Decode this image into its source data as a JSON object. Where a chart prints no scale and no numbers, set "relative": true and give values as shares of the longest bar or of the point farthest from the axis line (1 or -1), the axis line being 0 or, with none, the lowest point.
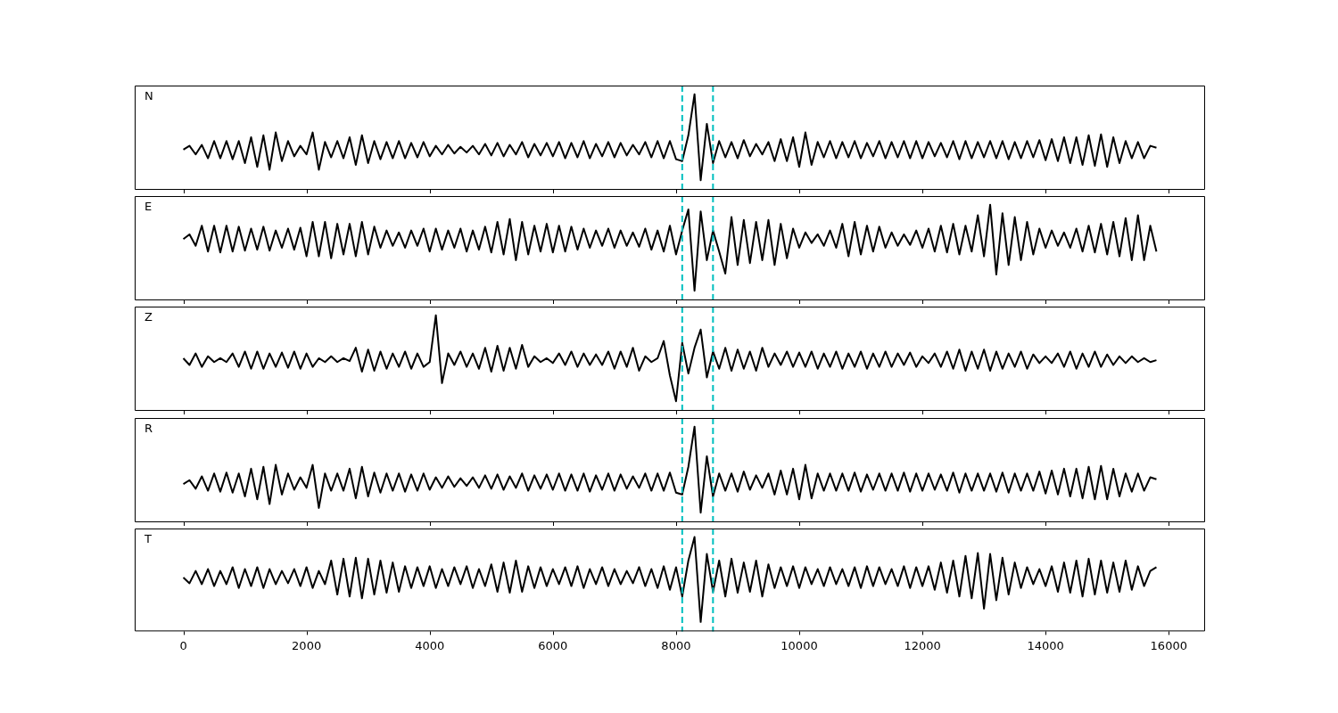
{
  "chart_data": [
    {
      "type": "line",
      "annotations": [
        "N"
      ],
      "relative": true,
      "color": "#000000",
      "marker": "none",
      "legend": false,
      "grid": false,
      "tick_labels": false,
      "xlim": [
        -790,
        16590
      ],
      "xticks": [
        0,
        2000,
        4000,
        6000,
        8000,
        10000,
        12000,
        14000,
        16000
      ],
      "ref_lines": [
        {
          "axis": "x",
          "value": 8100,
          "color": "#00bfbf",
          "line_style": "dashed"
        },
        {
          "axis": "x",
          "value": 8600,
          "color": "#00bfbf",
          "line_style": "dashed"
        }
      ],
      "x": [
        0,
        100,
        200,
        300,
        400,
        500,
        600,
        700,
        800,
        900,
        1000,
        1100,
        1200,
        1300,
        1400,
        1500,
        1600,
        1700,
        1800,
        1900,
        2000,
        2100,
        2200,
        2300,
        2400,
        2500,
        2600,
        2700,
        2800,
        2900,
        3000,
        3100,
        3200,
        3300,
        3400,
        3500,
        3600,
        3700,
        3800,
        3900,
        4000,
        4100,
        4200,
        4300,
        4400,
        4500,
        4600,
        4700,
        4800,
        4900,
        5000,
        5100,
        5200,
        5300,
        5400,
        5500,
        5600,
        5700,
        5800,
        5900,
        6000,
        6100,
        6200,
        6300,
        6400,
        6500,
        6600,
        6700,
        6800,
        6900,
        7000,
        7100,
        7200,
        7300,
        7400,
        7500,
        7600,
        7700,
        7800,
        7900,
        8000,
        8100,
        8200,
        8300,
        8400,
        8500,
        8600,
        8700,
        8800,
        8900,
        9000,
        9100,
        9200,
        9300,
        9400,
        9500,
        9600,
        9700,
        9800,
        9900,
        10000,
        10100,
        10200,
        10300,
        10400,
        10500,
        10600,
        10700,
        10800,
        10900,
        11000,
        11100,
        11200,
        11300,
        11400,
        11500,
        11600,
        11700,
        11800,
        11900,
        12000,
        12100,
        12200,
        12300,
        12400,
        12500,
        12600,
        12700,
        12800,
        12900,
        13000,
        13100,
        13200,
        13300,
        13400,
        13500,
        13600,
        13700,
        13800,
        13900,
        14000,
        14100,
        14200,
        14300,
        14400,
        14500,
        14600,
        14700,
        14800,
        14900,
        15000,
        15100,
        15200,
        15300,
        15400,
        15500,
        15600,
        15700,
        15800
      ],
      "values": [
        0.42,
        0.46,
        0.37,
        0.47,
        0.33,
        0.51,
        0.33,
        0.51,
        0.32,
        0.51,
        0.28,
        0.55,
        0.24,
        0.57,
        0.21,
        0.6,
        0.3,
        0.51,
        0.35,
        0.46,
        0.37,
        0.6,
        0.21,
        0.5,
        0.34,
        0.51,
        0.33,
        0.55,
        0.26,
        0.57,
        0.28,
        0.51,
        0.32,
        0.5,
        0.33,
        0.51,
        0.33,
        0.49,
        0.34,
        0.5,
        0.35,
        0.46,
        0.37,
        0.47,
        0.38,
        0.45,
        0.39,
        0.46,
        0.37,
        0.48,
        0.36,
        0.49,
        0.35,
        0.47,
        0.37,
        0.5,
        0.34,
        0.48,
        0.36,
        0.49,
        0.35,
        0.5,
        0.33,
        0.49,
        0.34,
        0.51,
        0.33,
        0.48,
        0.35,
        0.5,
        0.34,
        0.49,
        0.36,
        0.47,
        0.37,
        0.5,
        0.34,
        0.51,
        0.33,
        0.51,
        0.32,
        0.3,
        0.57,
        1.0,
        0.1,
        0.69,
        0.28,
        0.51,
        0.34,
        0.5,
        0.33,
        0.52,
        0.35,
        0.48,
        0.37,
        0.5,
        0.3,
        0.53,
        0.3,
        0.55,
        0.24,
        0.6,
        0.26,
        0.5,
        0.34,
        0.51,
        0.33,
        0.5,
        0.34,
        0.51,
        0.33,
        0.49,
        0.35,
        0.51,
        0.33,
        0.5,
        0.34,
        0.51,
        0.33,
        0.51,
        0.33,
        0.5,
        0.35,
        0.49,
        0.34,
        0.51,
        0.32,
        0.51,
        0.33,
        0.5,
        0.34,
        0.51,
        0.33,
        0.51,
        0.32,
        0.5,
        0.33,
        0.51,
        0.34,
        0.52,
        0.31,
        0.53,
        0.3,
        0.55,
        0.28,
        0.55,
        0.26,
        0.57,
        0.25,
        0.58,
        0.24,
        0.55,
        0.28,
        0.51,
        0.33,
        0.5,
        0.33,
        0.46,
        0.44
      ]
    },
    {
      "type": "line",
      "annotations": [
        "E"
      ],
      "relative": true,
      "color": "#000000",
      "marker": "none",
      "legend": false,
      "grid": false,
      "tick_labels": false,
      "xlim": [
        -790,
        16590
      ],
      "xticks": [
        0,
        2000,
        4000,
        6000,
        8000,
        10000,
        12000,
        14000,
        16000
      ],
      "ref_lines": [
        {
          "axis": "x",
          "value": 8100,
          "color": "#00bfbf",
          "line_style": "dashed"
        },
        {
          "axis": "x",
          "value": 8600,
          "color": "#00bfbf",
          "line_style": "dashed"
        }
      ],
      "x": [
        0,
        100,
        200,
        300,
        400,
        500,
        600,
        700,
        800,
        900,
        1000,
        1100,
        1200,
        1300,
        1400,
        1500,
        1600,
        1700,
        1800,
        1900,
        2000,
        2100,
        2200,
        2300,
        2400,
        2500,
        2600,
        2700,
        2800,
        2900,
        3000,
        3100,
        3200,
        3300,
        3400,
        3500,
        3600,
        3700,
        3800,
        3900,
        4000,
        4100,
        4200,
        4300,
        4400,
        4500,
        4600,
        4700,
        4800,
        4900,
        5000,
        5100,
        5200,
        5300,
        5400,
        5500,
        5600,
        5700,
        5800,
        5900,
        6000,
        6100,
        6200,
        6300,
        6400,
        6500,
        6600,
        6700,
        6800,
        6900,
        7000,
        7100,
        7200,
        7300,
        7400,
        7500,
        7600,
        7700,
        7800,
        7900,
        8000,
        8100,
        8200,
        8300,
        8400,
        8500,
        8600,
        8700,
        8800,
        8900,
        9000,
        9100,
        9200,
        9300,
        9400,
        9500,
        9600,
        9700,
        9800,
        9900,
        10000,
        10100,
        10200,
        10300,
        10400,
        10500,
        10600,
        10700,
        10800,
        10900,
        11000,
        11100,
        11200,
        11300,
        11400,
        11500,
        11600,
        11700,
        11800,
        11900,
        12000,
        12100,
        12200,
        12300,
        12400,
        12500,
        12600,
        12700,
        12800,
        12900,
        13000,
        13100,
        13200,
        13300,
        13400,
        13500,
        13600,
        13700,
        13800,
        13900,
        14000,
        14100,
        14200,
        14300,
        14400,
        14500,
        14600,
        14700,
        14800,
        14900,
        15000,
        15100,
        15200,
        15300,
        15400,
        15500,
        15600,
        15700,
        15800
      ],
      "values": [
        0.64,
        0.69,
        0.57,
        0.78,
        0.51,
        0.78,
        0.5,
        0.78,
        0.51,
        0.77,
        0.52,
        0.75,
        0.53,
        0.77,
        0.52,
        0.73,
        0.55,
        0.75,
        0.53,
        0.76,
        0.46,
        0.82,
        0.46,
        0.82,
        0.44,
        0.8,
        0.48,
        0.8,
        0.46,
        0.82,
        0.48,
        0.77,
        0.55,
        0.73,
        0.57,
        0.71,
        0.55,
        0.73,
        0.57,
        0.75,
        0.51,
        0.75,
        0.53,
        0.73,
        0.55,
        0.75,
        0.51,
        0.73,
        0.53,
        0.77,
        0.5,
        0.82,
        0.48,
        0.85,
        0.42,
        0.82,
        0.48,
        0.78,
        0.51,
        0.8,
        0.5,
        0.78,
        0.51,
        0.77,
        0.53,
        0.75,
        0.55,
        0.73,
        0.57,
        0.75,
        0.55,
        0.73,
        0.57,
        0.71,
        0.56,
        0.75,
        0.53,
        0.73,
        0.51,
        0.78,
        0.48,
        0.73,
        0.95,
        0.1,
        0.93,
        0.42,
        0.73,
        0.51,
        0.28,
        0.87,
        0.37,
        0.84,
        0.39,
        0.82,
        0.42,
        0.84,
        0.37,
        0.8,
        0.44,
        0.75,
        0.55,
        0.71,
        0.6,
        0.69,
        0.57,
        0.73,
        0.55,
        0.8,
        0.46,
        0.82,
        0.48,
        0.78,
        0.51,
        0.77,
        0.55,
        0.71,
        0.57,
        0.69,
        0.58,
        0.73,
        0.55,
        0.75,
        0.51,
        0.78,
        0.5,
        0.8,
        0.48,
        0.78,
        0.51,
        0.89,
        0.46,
        1.0,
        0.27,
        0.91,
        0.37,
        0.87,
        0.42,
        0.82,
        0.48,
        0.75,
        0.55,
        0.73,
        0.57,
        0.71,
        0.55,
        0.75,
        0.51,
        0.78,
        0.5,
        0.8,
        0.48,
        0.82,
        0.46,
        0.86,
        0.42,
        0.89,
        0.42,
        0.78,
        0.51
      ]
    },
    {
      "type": "line",
      "annotations": [
        "Z"
      ],
      "relative": true,
      "color": "#000000",
      "marker": "none",
      "legend": false,
      "grid": false,
      "tick_labels": false,
      "xlim": [
        -790,
        16590
      ],
      "xticks": [
        0,
        2000,
        4000,
        6000,
        8000,
        10000,
        12000,
        14000,
        16000
      ],
      "ref_lines": [
        {
          "axis": "x",
          "value": 8100,
          "color": "#00bfbf",
          "line_style": "dashed"
        },
        {
          "axis": "x",
          "value": 8600,
          "color": "#00bfbf",
          "line_style": "dashed"
        }
      ],
      "x": [
        0,
        100,
        200,
        300,
        400,
        500,
        600,
        700,
        800,
        900,
        1000,
        1100,
        1200,
        1300,
        1400,
        1500,
        1600,
        1700,
        1800,
        1900,
        2000,
        2100,
        2200,
        2300,
        2400,
        2500,
        2600,
        2700,
        2800,
        2900,
        3000,
        3100,
        3200,
        3300,
        3400,
        3500,
        3600,
        3700,
        3800,
        3900,
        4000,
        4100,
        4200,
        4300,
        4400,
        4500,
        4600,
        4700,
        4800,
        4900,
        5000,
        5100,
        5200,
        5300,
        5400,
        5500,
        5600,
        5700,
        5800,
        5900,
        6000,
        6100,
        6200,
        6300,
        6400,
        6500,
        6600,
        6700,
        6800,
        6900,
        7000,
        7100,
        7200,
        7300,
        7400,
        7500,
        7600,
        7700,
        7800,
        7900,
        8000,
        8100,
        8200,
        8300,
        8400,
        8500,
        8600,
        8700,
        8800,
        8900,
        9000,
        9100,
        9200,
        9300,
        9400,
        9500,
        9600,
        9700,
        9800,
        9900,
        10000,
        10100,
        10200,
        10300,
        10400,
        10500,
        10600,
        10700,
        10800,
        10900,
        11000,
        11100,
        11200,
        11300,
        11400,
        11500,
        11600,
        11700,
        11800,
        11900,
        12000,
        12100,
        12200,
        12300,
        12400,
        12500,
        12600,
        12700,
        12800,
        12900,
        13000,
        13100,
        13200,
        13300,
        13400,
        13500,
        13600,
        13700,
        13800,
        13900,
        14000,
        14100,
        14200,
        14300,
        14400,
        14500,
        14600,
        14700,
        14800,
        14900,
        15000,
        15100,
        15200,
        15300,
        15400,
        15500,
        15600,
        15700,
        15800
      ],
      "values": [
        0.55,
        0.48,
        0.6,
        0.46,
        0.57,
        0.51,
        0.55,
        0.51,
        0.6,
        0.46,
        0.62,
        0.44,
        0.62,
        0.44,
        0.6,
        0.46,
        0.61,
        0.45,
        0.62,
        0.44,
        0.6,
        0.46,
        0.55,
        0.51,
        0.57,
        0.51,
        0.55,
        0.52,
        0.66,
        0.41,
        0.64,
        0.42,
        0.62,
        0.44,
        0.6,
        0.46,
        0.62,
        0.44,
        0.6,
        0.46,
        0.51,
        1.0,
        0.29,
        0.6,
        0.48,
        0.62,
        0.46,
        0.6,
        0.44,
        0.66,
        0.41,
        0.68,
        0.42,
        0.66,
        0.44,
        0.69,
        0.46,
        0.57,
        0.51,
        0.55,
        0.5,
        0.6,
        0.48,
        0.62,
        0.46,
        0.6,
        0.48,
        0.59,
        0.48,
        0.62,
        0.44,
        0.62,
        0.46,
        0.66,
        0.42,
        0.57,
        0.51,
        0.55,
        0.73,
        0.37,
        0.1,
        0.71,
        0.39,
        0.66,
        0.85,
        0.35,
        0.62,
        0.44,
        0.66,
        0.42,
        0.64,
        0.44,
        0.62,
        0.42,
        0.66,
        0.46,
        0.6,
        0.48,
        0.62,
        0.46,
        0.61,
        0.46,
        0.62,
        0.44,
        0.6,
        0.46,
        0.62,
        0.44,
        0.6,
        0.46,
        0.62,
        0.44,
        0.6,
        0.46,
        0.62,
        0.46,
        0.6,
        0.48,
        0.61,
        0.46,
        0.57,
        0.5,
        0.6,
        0.46,
        0.62,
        0.44,
        0.64,
        0.42,
        0.62,
        0.44,
        0.64,
        0.42,
        0.62,
        0.44,
        0.6,
        0.46,
        0.62,
        0.44,
        0.59,
        0.5,
        0.57,
        0.5,
        0.6,
        0.46,
        0.62,
        0.44,
        0.6,
        0.46,
        0.62,
        0.46,
        0.59,
        0.48,
        0.57,
        0.5,
        0.57,
        0.51,
        0.55,
        0.51,
        0.53
      ]
    },
    {
      "type": "line",
      "annotations": [
        "R"
      ],
      "relative": true,
      "color": "#000000",
      "marker": "none",
      "legend": false,
      "grid": false,
      "tick_labels": false,
      "xlim": [
        -790,
        16590
      ],
      "xticks": [
        0,
        2000,
        4000,
        6000,
        8000,
        10000,
        12000,
        14000,
        16000
      ],
      "ref_lines": [
        {
          "axis": "x",
          "value": 8100,
          "color": "#00bfbf",
          "line_style": "dashed"
        },
        {
          "axis": "x",
          "value": 8600,
          "color": "#00bfbf",
          "line_style": "dashed"
        }
      ],
      "x": [
        0,
        100,
        200,
        300,
        400,
        500,
        600,
        700,
        800,
        900,
        1000,
        1100,
        1200,
        1300,
        1400,
        1500,
        1600,
        1700,
        1800,
        1900,
        2000,
        2100,
        2200,
        2300,
        2400,
        2500,
        2600,
        2700,
        2800,
        2900,
        3000,
        3100,
        3200,
        3300,
        3400,
        3500,
        3600,
        3700,
        3800,
        3900,
        4000,
        4100,
        4200,
        4300,
        4400,
        4500,
        4600,
        4700,
        4800,
        4900,
        5000,
        5100,
        5200,
        5300,
        5400,
        5500,
        5600,
        5700,
        5800,
        5900,
        6000,
        6100,
        6200,
        6300,
        6400,
        6500,
        6600,
        6700,
        6800,
        6900,
        7000,
        7100,
        7200,
        7300,
        7400,
        7500,
        7600,
        7700,
        7800,
        7900,
        8000,
        8100,
        8200,
        8300,
        8400,
        8500,
        8600,
        8700,
        8800,
        8900,
        9000,
        9100,
        9200,
        9300,
        9400,
        9500,
        9600,
        9700,
        9800,
        9900,
        10000,
        10100,
        10200,
        10300,
        10400,
        10500,
        10600,
        10700,
        10800,
        10900,
        11000,
        11100,
        11200,
        11300,
        11400,
        11500,
        11600,
        11700,
        11800,
        11900,
        12000,
        12100,
        12200,
        12300,
        12400,
        12500,
        12600,
        12700,
        12800,
        12900,
        13000,
        13100,
        13200,
        13300,
        13400,
        13500,
        13600,
        13700,
        13800,
        13900,
        14000,
        14100,
        14200,
        14300,
        14400,
        14500,
        14600,
        14700,
        14800,
        14900,
        15000,
        15100,
        15200,
        15300,
        15400,
        15500,
        15600,
        15700,
        15800
      ],
      "values": [
        0.4,
        0.44,
        0.35,
        0.48,
        0.33,
        0.51,
        0.32,
        0.52,
        0.31,
        0.51,
        0.27,
        0.56,
        0.24,
        0.58,
        0.19,
        0.6,
        0.29,
        0.51,
        0.34,
        0.47,
        0.36,
        0.6,
        0.15,
        0.51,
        0.33,
        0.51,
        0.33,
        0.56,
        0.25,
        0.58,
        0.27,
        0.52,
        0.31,
        0.51,
        0.33,
        0.51,
        0.32,
        0.5,
        0.33,
        0.51,
        0.34,
        0.47,
        0.36,
        0.48,
        0.37,
        0.46,
        0.38,
        0.47,
        0.36,
        0.49,
        0.35,
        0.5,
        0.34,
        0.48,
        0.36,
        0.51,
        0.33,
        0.49,
        0.35,
        0.5,
        0.34,
        0.51,
        0.33,
        0.5,
        0.33,
        0.51,
        0.32,
        0.49,
        0.34,
        0.51,
        0.33,
        0.5,
        0.35,
        0.48,
        0.36,
        0.51,
        0.33,
        0.51,
        0.33,
        0.52,
        0.31,
        0.29,
        0.58,
        1.0,
        0.1,
        0.69,
        0.27,
        0.51,
        0.33,
        0.51,
        0.32,
        0.53,
        0.34,
        0.49,
        0.36,
        0.51,
        0.29,
        0.54,
        0.29,
        0.56,
        0.24,
        0.6,
        0.25,
        0.51,
        0.33,
        0.51,
        0.33,
        0.51,
        0.33,
        0.52,
        0.32,
        0.5,
        0.34,
        0.51,
        0.33,
        0.51,
        0.33,
        0.52,
        0.32,
        0.51,
        0.33,
        0.51,
        0.34,
        0.5,
        0.33,
        0.52,
        0.31,
        0.51,
        0.33,
        0.51,
        0.33,
        0.51,
        0.32,
        0.52,
        0.31,
        0.51,
        0.33,
        0.51,
        0.33,
        0.53,
        0.3,
        0.54,
        0.29,
        0.56,
        0.27,
        0.56,
        0.25,
        0.58,
        0.24,
        0.59,
        0.24,
        0.56,
        0.27,
        0.51,
        0.32,
        0.51,
        0.33,
        0.47,
        0.45
      ]
    },
    {
      "type": "line",
      "annotations": [
        "T"
      ],
      "relative": true,
      "color": "#000000",
      "marker": "none",
      "legend": false,
      "grid": false,
      "tick_labels": "x",
      "xlim": [
        -790,
        16590
      ],
      "xticks": [
        0,
        2000,
        4000,
        6000,
        8000,
        10000,
        12000,
        14000,
        16000
      ],
      "ref_lines": [
        {
          "axis": "x",
          "value": 8100,
          "color": "#00bfbf",
          "line_style": "dashed"
        },
        {
          "axis": "x",
          "value": 8600,
          "color": "#00bfbf",
          "line_style": "dashed"
        }
      ],
      "x": [
        0,
        100,
        200,
        300,
        400,
        500,
        600,
        700,
        800,
        900,
        1000,
        1100,
        1200,
        1300,
        1400,
        1500,
        1600,
        1700,
        1800,
        1900,
        2000,
        2100,
        2200,
        2300,
        2400,
        2500,
        2600,
        2700,
        2800,
        2900,
        3000,
        3100,
        3200,
        3300,
        3400,
        3500,
        3600,
        3700,
        3800,
        3900,
        4000,
        4100,
        4200,
        4300,
        4400,
        4500,
        4600,
        4700,
        4800,
        4900,
        5000,
        5100,
        5200,
        5300,
        5400,
        5500,
        5600,
        5700,
        5800,
        5900,
        6000,
        6100,
        6200,
        6300,
        6400,
        6500,
        6600,
        6700,
        6800,
        6900,
        7000,
        7100,
        7200,
        7300,
        7400,
        7500,
        7600,
        7700,
        7800,
        7900,
        8000,
        8100,
        8200,
        8300,
        8400,
        8500,
        8600,
        8700,
        8800,
        8900,
        9000,
        9100,
        9200,
        9300,
        9400,
        9500,
        9600,
        9700,
        9800,
        9900,
        10000,
        10100,
        10200,
        10300,
        10400,
        10500,
        10600,
        10700,
        10800,
        10900,
        11000,
        11100,
        11200,
        11300,
        11400,
        11500,
        11600,
        11700,
        11800,
        11900,
        12000,
        12100,
        12200,
        12300,
        12400,
        12500,
        12600,
        12700,
        12800,
        12900,
        13000,
        13100,
        13200,
        13300,
        13400,
        13500,
        13600,
        13700,
        13800,
        13900,
        14000,
        14100,
        14200,
        14300,
        14400,
        14500,
        14600,
        14700,
        14800,
        14900,
        15000,
        15100,
        15200,
        15300,
        15400,
        15500,
        15600,
        15700,
        15800
      ],
      "values": [
        0.57,
        0.51,
        0.64,
        0.5,
        0.66,
        0.48,
        0.64,
        0.5,
        0.68,
        0.46,
        0.66,
        0.48,
        0.68,
        0.46,
        0.66,
        0.5,
        0.64,
        0.51,
        0.66,
        0.48,
        0.68,
        0.46,
        0.64,
        0.5,
        0.75,
        0.39,
        0.77,
        0.37,
        0.78,
        0.35,
        0.77,
        0.39,
        0.75,
        0.41,
        0.73,
        0.42,
        0.69,
        0.46,
        0.68,
        0.48,
        0.69,
        0.46,
        0.66,
        0.48,
        0.68,
        0.5,
        0.69,
        0.46,
        0.66,
        0.48,
        0.71,
        0.42,
        0.73,
        0.41,
        0.75,
        0.42,
        0.69,
        0.46,
        0.68,
        0.48,
        0.66,
        0.5,
        0.68,
        0.48,
        0.69,
        0.46,
        0.66,
        0.5,
        0.68,
        0.48,
        0.66,
        0.5,
        0.64,
        0.51,
        0.68,
        0.48,
        0.66,
        0.46,
        0.69,
        0.44,
        0.68,
        0.37,
        0.75,
        1.0,
        0.1,
        0.82,
        0.42,
        0.75,
        0.37,
        0.77,
        0.41,
        0.73,
        0.42,
        0.75,
        0.37,
        0.71,
        0.46,
        0.68,
        0.48,
        0.69,
        0.46,
        0.68,
        0.5,
        0.66,
        0.48,
        0.68,
        0.5,
        0.66,
        0.48,
        0.68,
        0.46,
        0.69,
        0.48,
        0.68,
        0.5,
        0.66,
        0.48,
        0.69,
        0.46,
        0.68,
        0.48,
        0.69,
        0.44,
        0.73,
        0.41,
        0.75,
        0.37,
        0.8,
        0.35,
        0.83,
        0.24,
        0.82,
        0.33,
        0.78,
        0.39,
        0.73,
        0.46,
        0.68,
        0.5,
        0.66,
        0.48,
        0.69,
        0.42,
        0.73,
        0.41,
        0.75,
        0.37,
        0.77,
        0.39,
        0.75,
        0.41,
        0.73,
        0.42,
        0.75,
        0.44,
        0.69,
        0.48,
        0.64,
        0.68
      ]
    }
  ]
}
